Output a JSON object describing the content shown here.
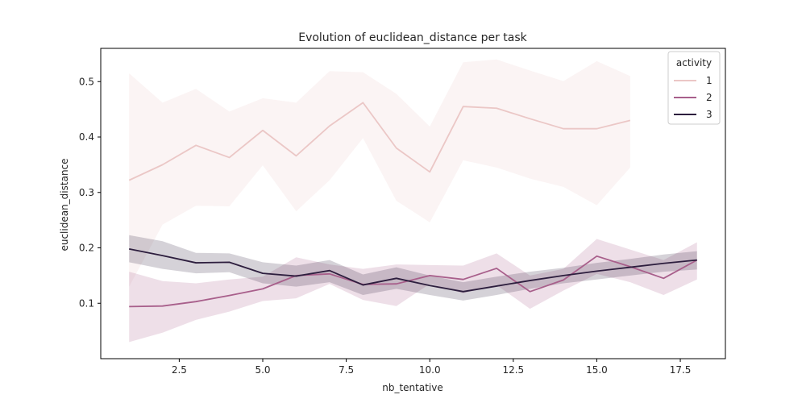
{
  "chart_data": {
    "type": "line",
    "title": "Evolution of euclidean_distance per task",
    "xlabel": "nb_tentative",
    "ylabel": "euclidean_distance",
    "xlim": [
      0.15,
      18.85
    ],
    "ylim": [
      0.0,
      0.56
    ],
    "xticks": [
      2.5,
      5.0,
      7.5,
      10.0,
      12.5,
      15.0,
      17.5
    ],
    "xtick_labels": [
      "2.5",
      "5.0",
      "7.5",
      "10.0",
      "12.5",
      "15.0",
      "17.5"
    ],
    "yticks": [
      0.1,
      0.2,
      0.3,
      0.4,
      0.5
    ],
    "ytick_labels": [
      "0.1",
      "0.2",
      "0.3",
      "0.4",
      "0.5"
    ],
    "grid": false,
    "legend": {
      "title": "activity",
      "placement": "top-right"
    },
    "series": [
      {
        "name": "1",
        "color": "#ebc7c6",
        "x": [
          1,
          2,
          3,
          4,
          5,
          6,
          7,
          8,
          9,
          10,
          11,
          12,
          13,
          14,
          15,
          16
        ],
        "y": [
          0.322,
          0.35,
          0.385,
          0.363,
          0.412,
          0.366,
          0.42,
          0.462,
          0.38,
          0.337,
          0.455,
          0.452,
          0.433,
          0.415,
          0.415,
          0.43
        ],
        "lower": [
          0.13,
          0.242,
          0.276,
          0.275,
          0.349,
          0.266,
          0.322,
          0.398,
          0.285,
          0.246,
          0.358,
          0.345,
          0.325,
          0.31,
          0.277,
          0.345
        ],
        "upper": [
          0.515,
          0.462,
          0.487,
          0.446,
          0.47,
          0.462,
          0.519,
          0.517,
          0.478,
          0.419,
          0.535,
          0.54,
          0.52,
          0.501,
          0.537,
          0.51
        ]
      },
      {
        "name": "2",
        "color": "#a85f8b",
        "x": [
          1,
          2,
          3,
          4,
          5,
          6,
          7,
          8,
          9,
          10,
          11,
          12,
          13,
          14,
          15,
          16,
          17,
          18
        ],
        "y": [
          0.094,
          0.095,
          0.103,
          0.114,
          0.126,
          0.15,
          0.153,
          0.134,
          0.135,
          0.15,
          0.143,
          0.163,
          0.121,
          0.142,
          0.185,
          0.166,
          0.145,
          0.178
        ],
        "lower": [
          0.03,
          0.047,
          0.07,
          0.085,
          0.104,
          0.109,
          0.135,
          0.106,
          0.095,
          0.135,
          0.118,
          0.133,
          0.09,
          0.123,
          0.153,
          0.138,
          0.115,
          0.143
        ],
        "upper": [
          0.157,
          0.14,
          0.136,
          0.143,
          0.148,
          0.183,
          0.17,
          0.162,
          0.17,
          0.169,
          0.168,
          0.19,
          0.15,
          0.162,
          0.216,
          0.197,
          0.178,
          0.21
        ]
      },
      {
        "name": "3",
        "color": "#2d1e3e",
        "x": [
          1,
          2,
          3,
          4,
          5,
          6,
          7,
          8,
          9,
          10,
          11,
          12,
          13,
          14,
          15,
          16,
          17,
          18
        ],
        "y": [
          0.198,
          0.186,
          0.173,
          0.174,
          0.154,
          0.149,
          0.159,
          0.133,
          0.145,
          0.132,
          0.121,
          0.131,
          0.141,
          0.15,
          0.158,
          0.165,
          0.172,
          0.178
        ],
        "lower": [
          0.174,
          0.162,
          0.154,
          0.156,
          0.136,
          0.13,
          0.138,
          0.115,
          0.126,
          0.115,
          0.105,
          0.115,
          0.126,
          0.136,
          0.143,
          0.15,
          0.157,
          0.161
        ],
        "upper": [
          0.223,
          0.212,
          0.191,
          0.19,
          0.174,
          0.168,
          0.178,
          0.152,
          0.165,
          0.15,
          0.138,
          0.148,
          0.157,
          0.164,
          0.173,
          0.18,
          0.188,
          0.194
        ]
      }
    ]
  }
}
